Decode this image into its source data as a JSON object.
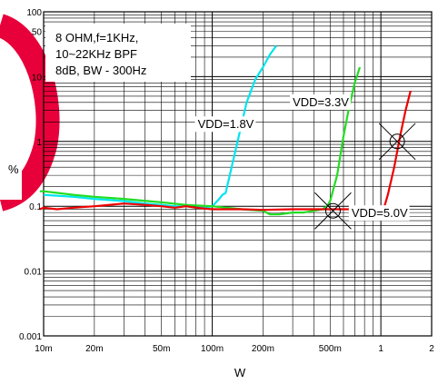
{
  "chart_data": {
    "type": "line",
    "title": "",
    "xlabel": "W",
    "ylabel": "%",
    "x_scale": "log",
    "y_scale": "log",
    "xlim": [
      0.01,
      2
    ],
    "ylim": [
      0.001,
      100
    ],
    "x_ticks": [
      {
        "v": 0.01,
        "label": "10m"
      },
      {
        "v": 0.02,
        "label": "20m"
      },
      {
        "v": 0.05,
        "label": "50m"
      },
      {
        "v": 0.1,
        "label": "100m"
      },
      {
        "v": 0.2,
        "label": "200m"
      },
      {
        "v": 0.5,
        "label": "500m"
      },
      {
        "v": 1,
        "label": "1"
      },
      {
        "v": 2,
        "label": "2"
      }
    ],
    "y_ticks": [
      {
        "v": 100,
        "label": "100"
      },
      {
        "v": 50,
        "label": "50"
      },
      {
        "v": 10,
        "label": "10"
      },
      {
        "v": 1,
        "label": "1"
      },
      {
        "v": 0.1,
        "label": "0.1"
      },
      {
        "v": 0.01,
        "label": "0.01"
      },
      {
        "v": 0.001,
        "label": "0.001"
      }
    ],
    "grid": true,
    "conditions": [
      "8 OHM,f=1KHz,",
      "10~22KHz BPF",
      "8dB, BW - 300Hz"
    ],
    "series": [
      {
        "name": "VDD=1.8V",
        "color": "#00e5ee",
        "x": [
          0.01,
          0.015,
          0.02,
          0.03,
          0.04,
          0.05,
          0.06,
          0.07,
          0.08,
          0.09,
          0.1,
          0.11,
          0.115,
          0.12,
          0.14,
          0.16,
          0.18,
          0.2,
          0.22,
          0.24
        ],
        "y": [
          0.15,
          0.14,
          0.13,
          0.12,
          0.11,
          0.105,
          0.1,
          0.1,
          0.095,
          0.095,
          0.1,
          0.13,
          0.15,
          0.16,
          0.9,
          4,
          9,
          14,
          22,
          30
        ]
      },
      {
        "name": "VDD=3.3V",
        "color": "#22dd22",
        "x": [
          0.0095,
          0.01,
          0.015,
          0.02,
          0.03,
          0.05,
          0.07,
          0.1,
          0.15,
          0.2,
          0.22,
          0.25,
          0.3,
          0.35,
          0.4,
          0.45,
          0.48,
          0.5,
          0.55,
          0.6,
          0.65,
          0.7,
          0.75
        ],
        "y": [
          0.17,
          0.17,
          0.15,
          0.14,
          0.13,
          0.115,
          0.105,
          0.1,
          0.09,
          0.085,
          0.075,
          0.075,
          0.08,
          0.08,
          0.085,
          0.09,
          0.1,
          0.12,
          0.3,
          1.2,
          3.5,
          8,
          14
        ]
      },
      {
        "name": "VDD=5.0V",
        "color": "#ee0000",
        "x": [
          0.0095,
          0.01,
          0.012,
          0.015,
          0.02,
          0.03,
          0.04,
          0.05,
          0.06,
          0.07,
          0.08,
          0.1,
          0.15,
          0.2,
          0.3,
          0.4,
          0.5,
          0.6,
          0.8,
          1.0,
          1.05,
          1.1,
          1.2,
          1.3,
          1.4,
          1.5
        ],
        "y": [
          0.09,
          0.095,
          0.09,
          0.095,
          0.1,
          0.11,
          0.105,
          0.1,
          0.095,
          0.1,
          0.095,
          0.09,
          0.09,
          0.088,
          0.09,
          0.09,
          0.09,
          0.09,
          0.09,
          0.09,
          0.1,
          0.15,
          0.4,
          1.2,
          3,
          6
        ]
      }
    ],
    "annotations": [
      {
        "text": "VDD=1.8V",
        "at": [
          0.082,
          1.6
        ]
      },
      {
        "text": "VDD=3.3V",
        "at": [
          0.3,
          3.5
        ]
      },
      {
        "text": "VDD=5.0V",
        "at": [
          0.67,
          0.068
        ]
      }
    ],
    "markers": [
      {
        "kind": "circle-x",
        "x": 0.52,
        "y": 0.085
      },
      {
        "kind": "circle-x",
        "x": 1.25,
        "y": 1.0
      }
    ]
  }
}
